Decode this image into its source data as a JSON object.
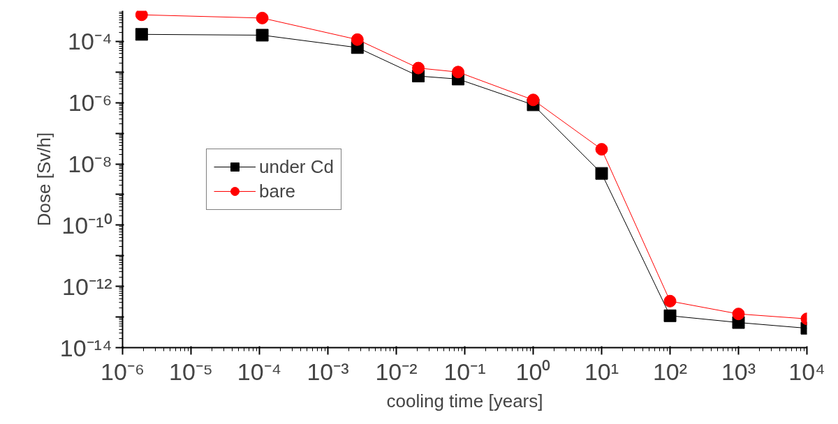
{
  "chart_data": {
    "type": "line",
    "xlabel": "cooling time [years]",
    "ylabel": "Dose [Sv/h]",
    "log": "xy",
    "grid": false,
    "legend": "center left",
    "x": [
      1.9e-06,
      0.00011,
      0.0027,
      0.021,
      0.08,
      1,
      10,
      100,
      1000,
      10000
    ],
    "xlim": [
      1e-06,
      10000.0
    ],
    "xticks": [
      {
        "value": 1e-06,
        "label": "10⁻⁶"
      },
      {
        "value": 1e-05,
        "label": "10⁻⁵"
      },
      {
        "value": 0.0001,
        "label": "10⁻⁴"
      },
      {
        "value": 0.001,
        "label": "10⁻³"
      },
      {
        "value": 0.01,
        "label": "10⁻²"
      },
      {
        "value": 0.1,
        "label": "10⁻¹"
      },
      {
        "value": 1,
        "label": "10⁰"
      },
      {
        "value": 10,
        "label": "10¹"
      },
      {
        "value": 100,
        "label": "10²"
      },
      {
        "value": 1000,
        "label": "10³"
      },
      {
        "value": 10000,
        "label": "10⁴"
      }
    ],
    "ylim": [
      1e-14,
      0.001
    ],
    "yticks": [
      {
        "value": 1e-14,
        "label": "10⁻¹⁴"
      },
      {
        "value": 1e-13,
        "label": null
      },
      {
        "value": 1e-12,
        "label": "10⁻¹²"
      },
      {
        "value": 1e-11,
        "label": null
      },
      {
        "value": 1e-10,
        "label": "10⁻¹⁰"
      },
      {
        "value": 1e-09,
        "label": null
      },
      {
        "value": 1e-08,
        "label": "10⁻⁸"
      },
      {
        "value": 1e-07,
        "label": null
      },
      {
        "value": 1e-06,
        "label": "10⁻⁶"
      },
      {
        "value": 1e-05,
        "label": null
      },
      {
        "value": 0.0001,
        "label": "10⁻⁴"
      }
    ],
    "series": [
      {
        "name": "under Cd",
        "color": "#000000",
        "marker": "square",
        "values": [
          0.00017,
          0.00016,
          6.3e-05,
          7.4e-06,
          5.9e-06,
          8.5e-07,
          4.9e-09,
          1.1e-13,
          6.6e-14,
          4.3e-14
        ]
      },
      {
        "name": "bare",
        "color": "#ff0000",
        "marker": "circle",
        "values": [
          0.00074,
          0.00058,
          0.000115,
          1.35e-05,
          1e-05,
          1.23e-06,
          3e-08,
          3.3e-13,
          1.26e-13,
          8.7e-14
        ]
      }
    ]
  }
}
